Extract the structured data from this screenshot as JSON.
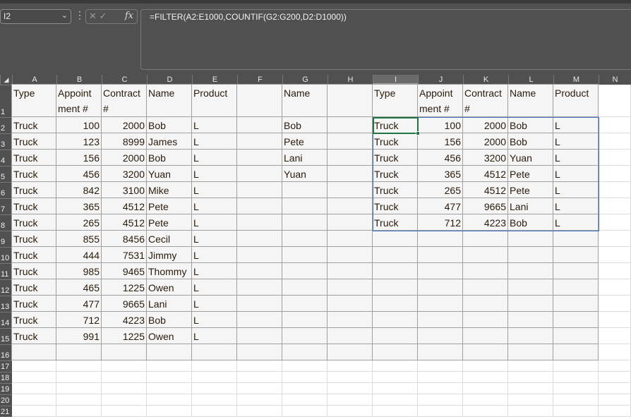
{
  "name_box": "I2",
  "formula": "=FILTER(A2:E1000,COUNTIF(G2:G200,D2:D1000))",
  "icons": {
    "cancel": "✕",
    "enter": "✓",
    "fx": "fx"
  },
  "columns": [
    "A",
    "B",
    "C",
    "D",
    "E",
    "F",
    "G",
    "H",
    "I",
    "J",
    "K",
    "L",
    "M",
    "N"
  ],
  "selected_cell": "I2",
  "rows": [
    [
      "Type",
      "Appoint ment #",
      "Contract #",
      "Name",
      "Product",
      "",
      "Name",
      "",
      "Type",
      "Appoint ment #",
      "Contract #",
      "Name",
      "Product"
    ],
    [
      "Truck",
      "100",
      "2000",
      "Bob",
      "L",
      "",
      "Bob",
      "",
      "Truck",
      "100",
      "2000",
      "Bob",
      "L"
    ],
    [
      "Truck",
      "123",
      "8999",
      "James",
      "L",
      "",
      "Pete",
      "",
      "Truck",
      "156",
      "2000",
      "Bob",
      "L"
    ],
    [
      "Truck",
      "156",
      "2000",
      "Bob",
      "L",
      "",
      "Lani",
      "",
      "Truck",
      "456",
      "3200",
      "Yuan",
      "L"
    ],
    [
      "Truck",
      "456",
      "3200",
      "Yuan",
      "L",
      "",
      "Yuan",
      "",
      "Truck",
      "365",
      "4512",
      "Pete",
      "L"
    ],
    [
      "Truck",
      "842",
      "3100",
      "Mike",
      "L",
      "",
      "",
      "",
      "Truck",
      "265",
      "4512",
      "Pete",
      "L"
    ],
    [
      "Truck",
      "365",
      "4512",
      "Pete",
      "L",
      "",
      "",
      "",
      "Truck",
      "477",
      "9665",
      "Lani",
      "L"
    ],
    [
      "Truck",
      "265",
      "4512",
      "Pete",
      "L",
      "",
      "",
      "",
      "Truck",
      "712",
      "4223",
      "Bob",
      "L"
    ],
    [
      "Truck",
      "855",
      "8456",
      "Cecil",
      "L",
      "",
      "",
      "",
      "",
      "",
      "",
      "",
      ""
    ],
    [
      "Truck",
      "444",
      "7531",
      "Jimmy",
      "L",
      "",
      "",
      "",
      "",
      "",
      "",
      "",
      ""
    ],
    [
      "Truck",
      "985",
      "9465",
      "Thommy",
      "L",
      "",
      "",
      "",
      "",
      "",
      "",
      "",
      ""
    ],
    [
      "Truck",
      "465",
      "1225",
      "Owen",
      "L",
      "",
      "",
      "",
      "",
      "",
      "",
      "",
      ""
    ],
    [
      "Truck",
      "477",
      "9665",
      "Lani",
      "L",
      "",
      "",
      "",
      "",
      "",
      "",
      "",
      ""
    ],
    [
      "Truck",
      "712",
      "4223",
      "Bob",
      "L",
      "",
      "",
      "",
      "",
      "",
      "",
      "",
      ""
    ],
    [
      "Truck",
      "991",
      "1225",
      "Owen",
      "L",
      "",
      "",
      "",
      "",
      "",
      "",
      "",
      ""
    ],
    [
      "",
      "",
      "",
      "",
      "",
      "",
      "",
      "",
      "",
      "",
      "",
      "",
      ""
    ],
    [],
    [],
    [],
    [],
    []
  ]
}
